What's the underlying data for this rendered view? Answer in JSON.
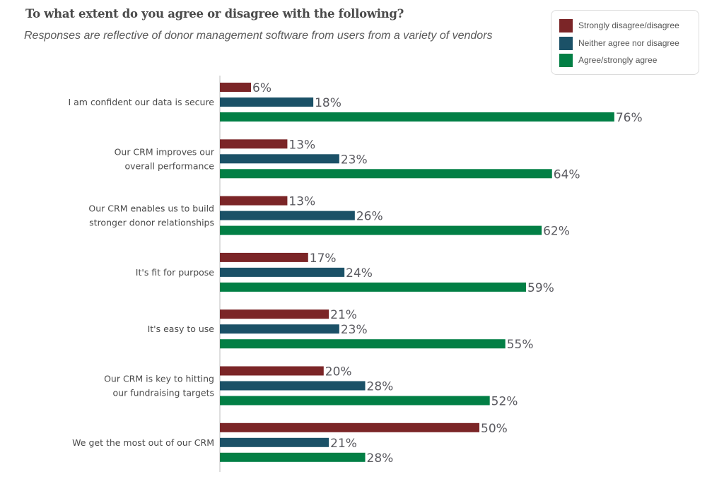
{
  "chart_data": {
    "type": "bar",
    "orientation": "horizontal",
    "title": "To what extent do you agree or disagree with the following?",
    "subtitle": "Responses are reflective of donor management software from users from a variety of vendors",
    "xlabel": "",
    "ylabel": "",
    "xlim": [
      0,
      100
    ],
    "grid": false,
    "legend_position": "top-right",
    "value_suffix": "%",
    "categories": [
      [
        "I am confident our data is secure"
      ],
      [
        "Our CRM improves our",
        "overall performance"
      ],
      [
        "Our CRM enables us to build",
        "stronger donor relationships"
      ],
      [
        "It's fit for purpose"
      ],
      [
        "It's easy to use"
      ],
      [
        "Our CRM is key to hitting",
        "our fundraising targets"
      ],
      [
        "We get the most out of our CRM"
      ]
    ],
    "series": [
      {
        "name": "Strongly disagree/disagree",
        "color": "#7B2527",
        "values": [
          6,
          13,
          13,
          17,
          21,
          20,
          50
        ]
      },
      {
        "name": "Neither agree nor disagree",
        "color": "#1B5167",
        "values": [
          18,
          23,
          26,
          24,
          23,
          28,
          21
        ]
      },
      {
        "name": "Agree/strongly agree",
        "color": "#027F45",
        "values": [
          76,
          64,
          62,
          59,
          55,
          52,
          28
        ]
      }
    ]
  }
}
